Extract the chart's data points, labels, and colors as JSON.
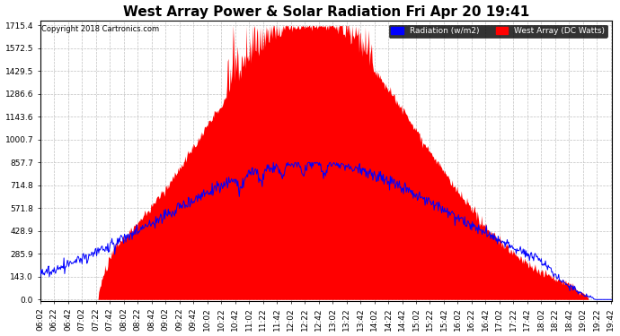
{
  "title": "West Array Power & Solar Radiation Fri Apr 20 19:41",
  "copyright": "Copyright 2018 Cartronics.com",
  "legend_labels": [
    "Radiation (w/m2)",
    "West Array (DC Watts)"
  ],
  "legend_colors": [
    "#0000ff",
    "#ff0000"
  ],
  "yticks": [
    0.0,
    143.0,
    285.9,
    428.9,
    571.8,
    714.8,
    857.7,
    1000.7,
    1143.6,
    1286.6,
    1429.5,
    1572.5,
    1715.4
  ],
  "ymax": 1715.4,
  "ymin": 0.0,
  "background_color": "#ffffff",
  "plot_bg_color": "#ffffff",
  "grid_color": "#c0c0c0",
  "area_color": "#ff0000",
  "line_color": "#0000ff",
  "title_fontsize": 11,
  "tick_fontsize": 6.5,
  "x_start_hour": 6,
  "x_start_min": 2,
  "x_end_hour": 19,
  "x_end_min": 43,
  "time_step_min": 20,
  "west_array_peak": 1715.4,
  "radiation_peak": 857.7,
  "west_array_start_hour": 7,
  "west_array_start_min": 25,
  "west_array_end_hour": 19,
  "west_array_end_min": 10
}
